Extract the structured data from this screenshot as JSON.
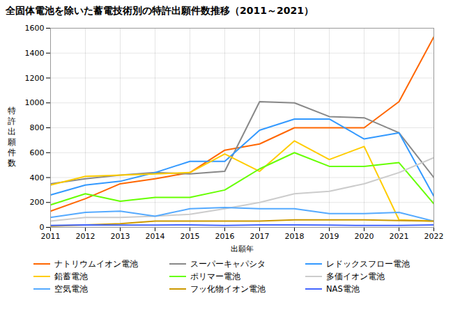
{
  "chart_data": {
    "type": "line",
    "title": "全固体電池を除いた蓄電技術別の特許出願件数推移（2011～2021）",
    "xlabel": "出願年",
    "ylabel": "特\n許\n出\n願\n件\n数",
    "x": [
      2011,
      2012,
      2013,
      2014,
      2015,
      2016,
      2017,
      2018,
      2019,
      2020,
      2021,
      2022
    ],
    "series": [
      {
        "name": "ナトリウムイオン電池",
        "color": "#FF6600",
        "values": [
          130,
          230,
          350,
          390,
          440,
          620,
          670,
          800,
          800,
          800,
          1010,
          1530
        ]
      },
      {
        "name": "スーパーキャパシタ",
        "color": "#888888",
        "values": [
          350,
          390,
          420,
          440,
          430,
          450,
          1010,
          1000,
          890,
          880,
          760,
          400
        ]
      },
      {
        "name": "レドックスフロー電池",
        "color": "#3399FF",
        "values": [
          260,
          340,
          370,
          440,
          530,
          530,
          780,
          870,
          870,
          710,
          760,
          250
        ]
      },
      {
        "name": "鉛蓄電池",
        "color": "#FFCC00",
        "values": [
          340,
          410,
          420,
          430,
          440,
          590,
          450,
          695,
          545,
          650,
          60,
          50
        ]
      },
      {
        "name": "ポリマー電池",
        "color": "#66FF00",
        "values": [
          180,
          270,
          210,
          240,
          240,
          300,
          470,
          600,
          490,
          490,
          520,
          190
        ]
      },
      {
        "name": "多価イオン電池",
        "color": "#CCCCCC",
        "values": [
          50,
          80,
          80,
          90,
          105,
          150,
          200,
          270,
          290,
          350,
          440,
          560
        ]
      },
      {
        "name": "空気電池",
        "color": "#55AAFF",
        "values": [
          80,
          120,
          130,
          90,
          150,
          160,
          150,
          150,
          110,
          110,
          120,
          50
        ]
      },
      {
        "name": "フッ化物イオン電池",
        "color": "#CC9900",
        "values": [
          10,
          20,
          30,
          50,
          50,
          50,
          50,
          60,
          60,
          60,
          55,
          50
        ]
      },
      {
        "name": "NAS電池",
        "color": "#4466FF",
        "values": [
          15,
          20,
          18,
          18,
          20,
          15,
          20,
          20,
          18,
          15,
          15,
          20
        ]
      }
    ],
    "xlim": [
      2011,
      2022
    ],
    "xticks": [
      2011,
      2012,
      2013,
      2014,
      2015,
      2016,
      2017,
      2018,
      2019,
      2020,
      2021,
      2022
    ],
    "ylim": [
      0,
      1600
    ],
    "yticks": [
      0,
      200,
      400,
      600,
      800,
      1000,
      1200,
      1400,
      1600
    ],
    "grid": true,
    "legend": "bottom"
  }
}
